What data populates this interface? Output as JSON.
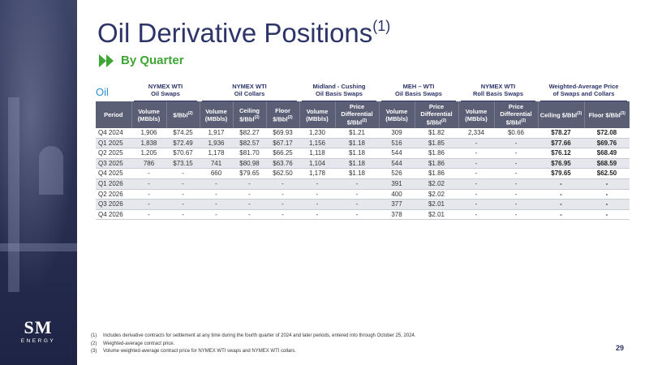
{
  "header": {
    "title": "Oil Derivative Positions",
    "title_sup": "(1)",
    "subtitle": "By Quarter"
  },
  "branding": {
    "logo_mark": "SM",
    "logo_sub": "ENERGY"
  },
  "table": {
    "section_label": "Oil",
    "groups": [
      {
        "line1": "NYMEX WTI",
        "line2": "Oil Swaps"
      },
      {
        "line1": "NYMEX WTI",
        "line2": "Oil Collars"
      },
      {
        "line1": "Midland - Cushing",
        "line2": "Oil Basis Swaps"
      },
      {
        "line1": "MEH – WTI",
        "line2": "Oil Basis Swaps"
      },
      {
        "line1": "NYMEX WTI",
        "line2": "Roll Basis Swaps"
      },
      {
        "line1": "Weighted-Average Price",
        "line2": "of Swaps and Collars"
      }
    ],
    "headers": [
      {
        "label": "Period",
        "sup": ""
      },
      {
        "label": "Volume (MBbls)",
        "sup": ""
      },
      {
        "label": "$/Bbl",
        "sup": "(2)"
      },
      {
        "label": "Volume (MBbls)",
        "sup": ""
      },
      {
        "label": "Ceiling $/Bbl",
        "sup": "(2)"
      },
      {
        "label": "Floor $/Bbl",
        "sup": "(2)"
      },
      {
        "label": "Volume (MBbls)",
        "sup": ""
      },
      {
        "label": "Price Differential $/Bbl",
        "sup": "(2)"
      },
      {
        "label": "Volume (MBbls)",
        "sup": ""
      },
      {
        "label": "Price Differential $/Bbl",
        "sup": "(2)"
      },
      {
        "label": "Volume (MBbls)",
        "sup": ""
      },
      {
        "label": "Price Differential $/Bbl",
        "sup": "(2)"
      },
      {
        "label": "Ceiling $/Bbl",
        "sup": "(3)"
      },
      {
        "label": "Floor $/Bbl",
        "sup": "(3)"
      }
    ],
    "rows": [
      [
        "Q4 2024",
        "1,906",
        "$74.25",
        "1,917",
        "$82.27",
        "$69.93",
        "1,230",
        "$1.21",
        "309",
        "$1.82",
        "2,334",
        "$0.66",
        "$78.27",
        "$72.08"
      ],
      [
        "Q1 2025",
        "1,838",
        "$72.49",
        "1,936",
        "$82.57",
        "$67.17",
        "1,156",
        "$1.18",
        "516",
        "$1.85",
        "-",
        "-",
        "$77.66",
        "$69.76"
      ],
      [
        "Q2 2025",
        "1,205",
        "$70.67",
        "1,178",
        "$81.70",
        "$66.25",
        "1,118",
        "$1.18",
        "544",
        "$1.86",
        "-",
        "-",
        "$76.12",
        "$68.49"
      ],
      [
        "Q3 2025",
        "786",
        "$73.15",
        "741",
        "$80.98",
        "$63.76",
        "1,104",
        "$1.18",
        "544",
        "$1.86",
        "-",
        "-",
        "$76.95",
        "$68.59"
      ],
      [
        "Q4 2025",
        "-",
        "-",
        "660",
        "$79.65",
        "$62.50",
        "1,178",
        "$1.18",
        "526",
        "$1.86",
        "-",
        "-",
        "$79.65",
        "$62.50"
      ],
      [
        "Q1 2026",
        "-",
        "-",
        "-",
        "-",
        "-",
        "-",
        "-",
        "391",
        "$2.02",
        "-",
        "-",
        "-",
        "-"
      ],
      [
        "Q2 2026",
        "-",
        "-",
        "-",
        "-",
        "-",
        "-",
        "-",
        "400",
        "$2.02",
        "-",
        "-",
        "-",
        "-"
      ],
      [
        "Q3 2026",
        "-",
        "-",
        "-",
        "-",
        "-",
        "-",
        "-",
        "377",
        "$2.01",
        "-",
        "-",
        "-",
        "-"
      ],
      [
        "Q4 2026",
        "-",
        "-",
        "-",
        "-",
        "-",
        "-",
        "-",
        "378",
        "$2.01",
        "-",
        "-",
        "-",
        "-"
      ]
    ]
  },
  "footnotes": [
    {
      "num": "(1)",
      "text": "Includes derivative contracts for settlement at any time during the fourth quarter of 2024 and later periods, entered into through October 25, 2024."
    },
    {
      "num": "(2)",
      "text": "Weighted-average contract price."
    },
    {
      "num": "(3)",
      "text": "Volume weighted-average contract price for NYMEX WTI swaps and NYMEX WTI collars."
    }
  ],
  "page_number": "29",
  "colors": {
    "navy": "#2c3468",
    "green": "#3fa535",
    "oil_blue": "#2e8fd0",
    "header_gray": "#5b5f75"
  }
}
